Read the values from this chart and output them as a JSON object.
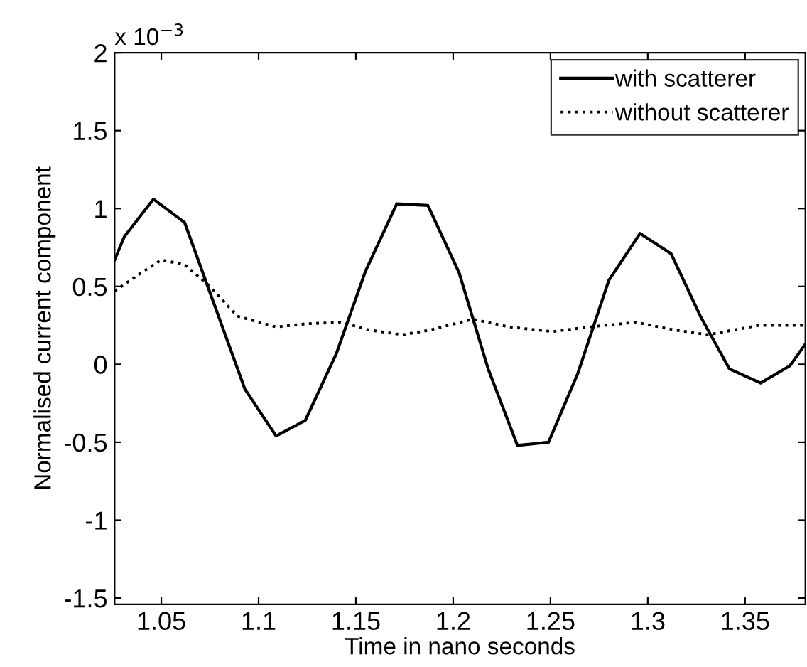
{
  "chart_data": {
    "type": "line",
    "xlabel": "Time in nano seconds",
    "ylabel": "Normalised current component",
    "annotations": [
      "x 10$^{−3}$"
    ],
    "xlim": [
      1.026,
      1.381
    ],
    "xticks": [
      1.05,
      1.1,
      1.15,
      1.2,
      1.25,
      1.3,
      1.35
    ],
    "ylim": [
      -1.54,
      2
    ],
    "yticks": [
      -1.5,
      -1,
      -0.5,
      0,
      0.5,
      1,
      1.5,
      2
    ],
    "grid": false,
    "legend": "top right",
    "marker": "none",
    "series": [
      {
        "name": "with scatterer",
        "color": "#000000",
        "line_style": "solid",
        "x": [
          1.026,
          1.031,
          1.046,
          1.062,
          1.093,
          1.109,
          1.124,
          1.14,
          1.155,
          1.171,
          1.187,
          1.203,
          1.218,
          1.233,
          1.249,
          1.264,
          1.28,
          1.296,
          1.312,
          1.327,
          1.342,
          1.358,
          1.373,
          1.381
        ],
        "values": [
          0.67,
          0.82,
          1.06,
          0.91,
          -0.16,
          -0.46,
          -0.36,
          0.07,
          0.6,
          1.03,
          1.02,
          0.59,
          -0.03,
          -0.52,
          -0.5,
          -0.06,
          0.54,
          0.84,
          0.71,
          0.31,
          -0.03,
          -0.12,
          -0.01,
          0.13
        ]
      },
      {
        "name": "without scatterer",
        "color": "#000000",
        "line_style": "dotted",
        "x": [
          1.026,
          1.04,
          1.05,
          1.062,
          1.075,
          1.089,
          1.109,
          1.124,
          1.142,
          1.157,
          1.174,
          1.188,
          1.21,
          1.229,
          1.251,
          1.27,
          1.294,
          1.314,
          1.331,
          1.357,
          1.381
        ],
        "values": [
          0.47,
          0.59,
          0.67,
          0.64,
          0.5,
          0.31,
          0.24,
          0.26,
          0.27,
          0.22,
          0.19,
          0.22,
          0.29,
          0.24,
          0.21,
          0.24,
          0.27,
          0.22,
          0.19,
          0.25,
          0.25
        ]
      }
    ]
  }
}
